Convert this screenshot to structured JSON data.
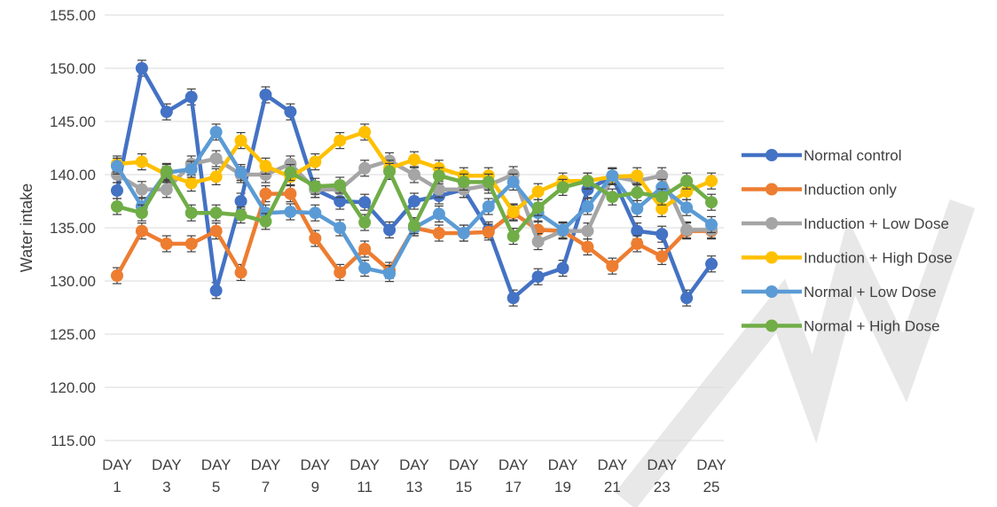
{
  "chart_data": {
    "type": "line",
    "title": "",
    "xlabel": "",
    "ylabel": "Water intake",
    "ylim": [
      115,
      155
    ],
    "yticks": [
      "115.00",
      "120.00",
      "125.00",
      "130.00",
      "135.00",
      "140.00",
      "145.00",
      "150.00",
      "155.00"
    ],
    "grid": true,
    "legend_position": "right",
    "x": [
      1,
      2,
      3,
      4,
      5,
      6,
      7,
      8,
      9,
      10,
      11,
      12,
      13,
      14,
      15,
      16,
      17,
      18,
      19,
      20,
      21,
      22,
      23,
      24,
      25
    ],
    "x_tick_labels": [
      {
        "x": 1,
        "lines": [
          "DAY",
          "1"
        ]
      },
      {
        "x": 3,
        "lines": [
          "DAY",
          "3"
        ]
      },
      {
        "x": 5,
        "lines": [
          "DAY",
          "5"
        ]
      },
      {
        "x": 7,
        "lines": [
          "DAY",
          "7"
        ]
      },
      {
        "x": 9,
        "lines": [
          "DAY",
          "9"
        ]
      },
      {
        "x": 11,
        "lines": [
          "DAY",
          "11"
        ]
      },
      {
        "x": 13,
        "lines": [
          "DAY",
          "13"
        ]
      },
      {
        "x": 15,
        "lines": [
          "DAY",
          "15"
        ]
      },
      {
        "x": 17,
        "lines": [
          "DAY",
          "17"
        ]
      },
      {
        "x": 19,
        "lines": [
          "DAY",
          "19"
        ]
      },
      {
        "x": 21,
        "lines": [
          "DAY",
          "21"
        ]
      },
      {
        "x": 23,
        "lines": [
          "DAY",
          "23"
        ]
      },
      {
        "x": 25,
        "lines": [
          "DAY",
          "25"
        ]
      }
    ],
    "series": [
      {
        "name": "Normal control",
        "color": "#4472c4",
        "values": [
          138.5,
          150.0,
          145.9,
          147.3,
          129.1,
          137.5,
          147.5,
          145.9,
          138.6,
          137.5,
          137.4,
          134.8,
          137.5,
          138.0,
          138.6,
          134.8,
          128.4,
          130.4,
          131.2,
          138.6,
          139.8,
          134.7,
          134.4,
          128.4,
          131.6
        ]
      },
      {
        "name": "Induction only",
        "color": "#ed7d31",
        "values": [
          130.5,
          134.7,
          133.5,
          133.5,
          134.7,
          130.8,
          138.2,
          138.2,
          134.0,
          130.8,
          133.0,
          131.0,
          135.0,
          134.5,
          134.5,
          134.6,
          136.4,
          134.8,
          134.7,
          133.2,
          131.4,
          133.5,
          132.3,
          134.7,
          134.7
        ]
      },
      {
        "name": "Induction + Low Dose",
        "color": "#a5a5a5",
        "values": [
          140.0,
          138.6,
          138.6,
          141.0,
          141.5,
          140.0,
          140.0,
          141.0,
          138.6,
          138.6,
          140.6,
          141.3,
          140.0,
          138.6,
          138.6,
          139.0,
          140.0,
          133.7,
          134.7,
          134.7,
          139.8,
          139.4,
          139.9,
          134.8,
          134.8
        ]
      },
      {
        "name": "Induction + High Dose",
        "color": "#ffc000",
        "values": [
          141.0,
          141.2,
          140.0,
          139.2,
          139.8,
          143.2,
          140.8,
          139.8,
          141.2,
          143.2,
          144.0,
          140.6,
          141.4,
          140.6,
          139.9,
          139.9,
          136.5,
          138.4,
          139.4,
          139.4,
          139.8,
          139.9,
          136.8,
          138.4,
          139.4
        ]
      },
      {
        "name": "Normal + Low Dose",
        "color": "#5b9bd5",
        "values": [
          140.8,
          137.0,
          140.2,
          140.5,
          144.0,
          140.2,
          136.4,
          136.5,
          136.4,
          135.0,
          131.2,
          130.7,
          135.0,
          136.3,
          134.5,
          137.0,
          139.3,
          136.4,
          134.8,
          137.0,
          139.9,
          136.8,
          138.8,
          136.9,
          135.3
        ]
      },
      {
        "name": "Normal + High Dose",
        "color": "#70ad47",
        "values": [
          137.0,
          136.4,
          140.3,
          136.4,
          136.4,
          136.2,
          135.6,
          140.2,
          138.9,
          139.0,
          135.5,
          140.3,
          135.2,
          139.9,
          139.3,
          139.3,
          134.2,
          136.9,
          138.8,
          139.4,
          137.9,
          138.3,
          137.9,
          139.4,
          137.4
        ]
      }
    ]
  }
}
